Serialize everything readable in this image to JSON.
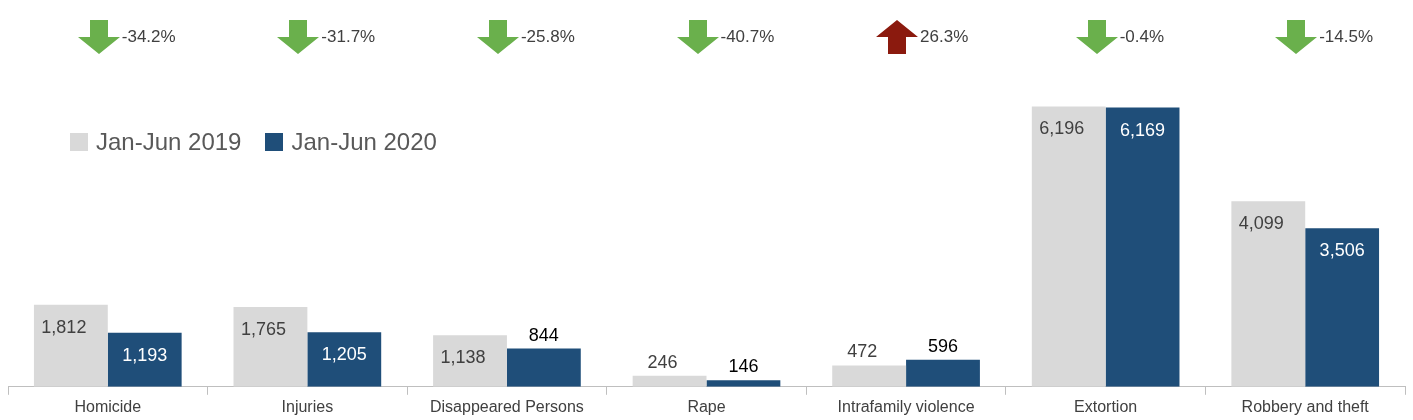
{
  "chart_data": {
    "type": "bar",
    "categories": [
      "Homicide",
      "Injuries",
      "Disappeared Persons",
      "Rape",
      "Intrafamily violence",
      "Extortion",
      "Robbery and theft"
    ],
    "series": [
      {
        "name": "Jan-Jun 2019",
        "color": "#d9d9d9",
        "values": [
          1812,
          1765,
          1138,
          246,
          472,
          6196,
          4099
        ],
        "value_labels": [
          "1,812",
          "1,765",
          "1,138",
          "246",
          "472",
          "6,196",
          "4,099"
        ]
      },
      {
        "name": "Jan-Jun 2020",
        "color": "#1f4e79",
        "values": [
          1193,
          1205,
          844,
          146,
          596,
          6169,
          3506
        ],
        "value_labels": [
          "1,193",
          "1,205",
          "844",
          "146",
          "596",
          "6,169",
          "3,506"
        ]
      }
    ],
    "annotations": [
      "-34.2%",
      "-31.7%",
      "-25.8%",
      "-40.7%",
      "26.3%",
      "-0.4%",
      "-14.5%"
    ],
    "legend": "top left"
  }
}
